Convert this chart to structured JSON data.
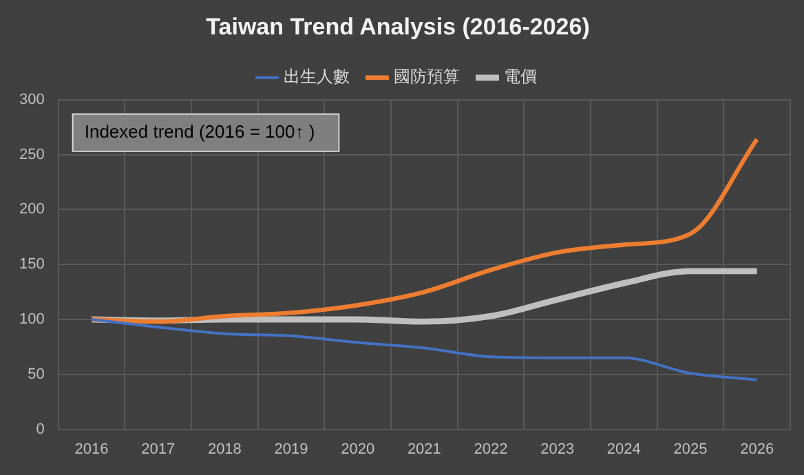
{
  "chart_data": {
    "type": "line",
    "title": "Taiwan Trend Analysis (2016-2026)",
    "annotations": [
      "Indexed trend (2016 = 100↑ )"
    ],
    "categories": [
      "2016",
      "2017",
      "2018",
      "2019",
      "2020",
      "2021",
      "2022",
      "2023",
      "2024",
      "2025",
      "2026"
    ],
    "series": [
      {
        "name": "出生人數",
        "color": "#4472c4",
        "values": [
          100,
          93,
          87,
          85,
          79,
          74,
          66,
          65,
          65,
          51,
          45
        ]
      },
      {
        "name": "國防預算",
        "color": "#ed7d31",
        "values": [
          100,
          98,
          103,
          106,
          113,
          125,
          145,
          161,
          168,
          178,
          264
        ]
      },
      {
        "name": "電價",
        "color": "#bfbfbf",
        "values": [
          100,
          99,
          100,
          100,
          100,
          98,
          103,
          118,
          133,
          144,
          144
        ]
      }
    ],
    "ylim": [
      0,
      300
    ],
    "yticks": [
      0,
      50,
      100,
      150,
      200,
      250,
      300
    ],
    "grid": true,
    "legend": "top",
    "marker": "none",
    "line_style": "solid"
  }
}
